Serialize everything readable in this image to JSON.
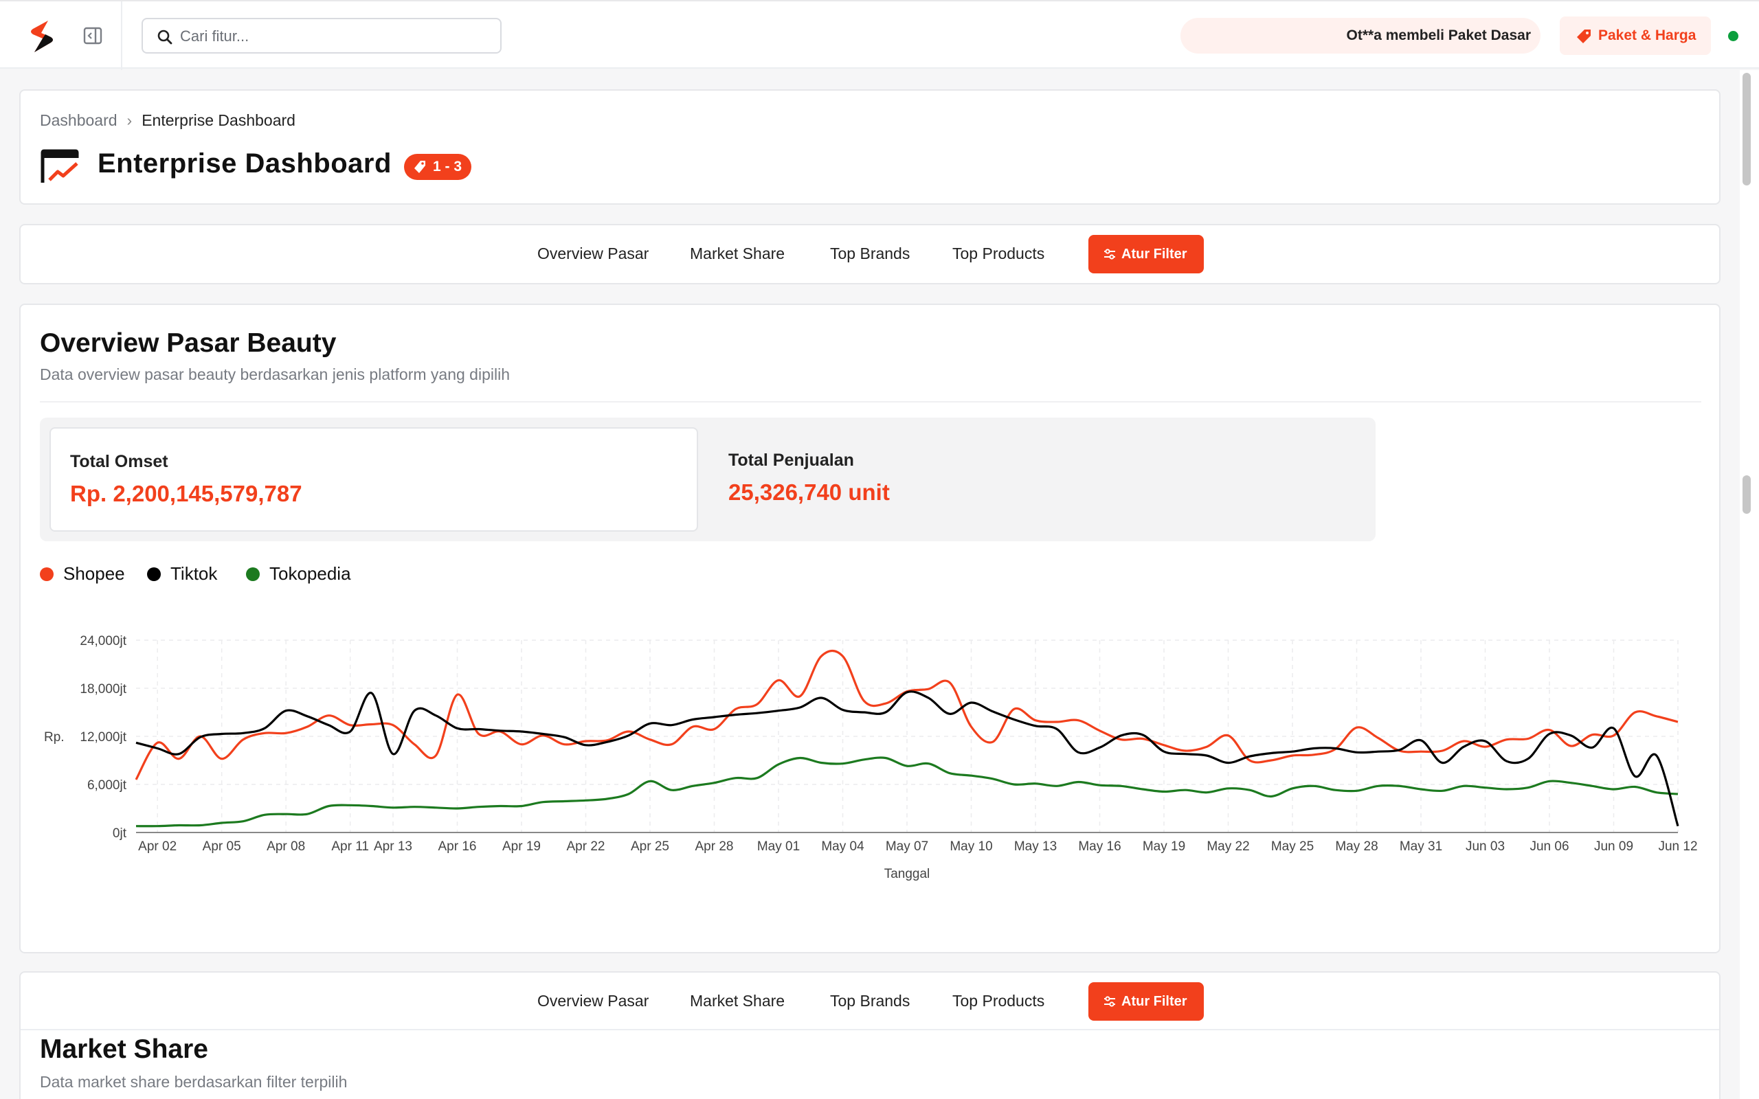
{
  "topbar": {
    "search_placeholder": "Cari fitur...",
    "ticker_text": "Ot**a membeli Paket Dasar",
    "pricing_label": "Paket & Harga"
  },
  "breadcrumb": {
    "root": "Dashboard",
    "current": "Enterprise Dashboard"
  },
  "page": {
    "title": "Enterprise Dashboard",
    "tier_badge": "1 - 3"
  },
  "nav_tabs": [
    "Overview Pasar",
    "Market Share",
    "Top Brands",
    "Top Products"
  ],
  "filter_label": "Atur Filter",
  "overview": {
    "title": "Overview Pasar Beauty",
    "subtitle": "Data overview pasar beauty berdasarkan jenis platform yang dipilih",
    "stats": [
      {
        "label": "Total Omset",
        "value": "Rp. 2,200,145,579,787"
      },
      {
        "label": "Total Penjualan",
        "value": "25,326,740 unit"
      }
    ]
  },
  "market_share": {
    "title": "Market Share",
    "subtitle": "Data market share berdasarkan filter terpilih"
  },
  "colors": {
    "accent": "#f2401c",
    "shopee": "#f2401c",
    "tiktok": "#000000",
    "tokopedia": "#1c7a1f",
    "online": "#0c9f3d"
  },
  "chart_data": {
    "type": "line",
    "xlabel": "Tanggal",
    "ylabel": "Rp.",
    "y_ticks": [
      "0jt",
      "6,000jt",
      "12,000jt",
      "18,000jt",
      "24,000jt"
    ],
    "ylim": [
      0,
      24000
    ],
    "x_ticks": [
      "Apr 02",
      "Apr 05",
      "Apr 08",
      "Apr 11",
      "Apr 13",
      "Apr 16",
      "Apr 19",
      "Apr 22",
      "Apr 25",
      "Apr 28",
      "May 01",
      "May 04",
      "May 07",
      "May 10",
      "May 13",
      "May 16",
      "May 19",
      "May 22",
      "May 25",
      "May 28",
      "May 31",
      "Jun 03",
      "Jun 06",
      "Jun 09",
      "Jun 12"
    ],
    "x_tick_days": [
      1,
      4,
      7,
      10,
      12,
      15,
      18,
      21,
      24,
      27,
      30,
      33,
      36,
      39,
      42,
      45,
      48,
      51,
      54,
      57,
      60,
      63,
      66,
      69,
      72
    ],
    "grid": true,
    "legend_position": "top-left",
    "series": [
      {
        "name": "Shopee",
        "color": "#f2401c",
        "values": [
          6600,
          11200,
          9200,
          12000,
          9200,
          11600,
          12400,
          12400,
          13200,
          14600,
          13400,
          13500,
          13400,
          11000,
          9600,
          17200,
          12300,
          12600,
          11000,
          12100,
          11000,
          11400,
          11500,
          12600,
          11600,
          11000,
          13200,
          12900,
          15400,
          16000,
          19000,
          17000,
          22000,
          22000,
          16400,
          16100,
          17600,
          17900,
          18700,
          13200,
          11300,
          15400,
          14000,
          13800,
          14000,
          12700,
          11600,
          11700,
          10900,
          10200,
          10700,
          12100,
          9000,
          9000,
          9600,
          9700,
          10400,
          13100,
          11800,
          10200,
          10100,
          10200,
          11400,
          10700,
          11600,
          11700,
          12800,
          10800,
          12200,
          12100,
          15000,
          14500,
          13800
        ]
      },
      {
        "name": "Tiktok",
        "color": "#000000",
        "values": [
          11200,
          10500,
          9800,
          11900,
          12300,
          12400,
          13000,
          15200,
          14500,
          13400,
          12600,
          17400,
          9800,
          15200,
          14600,
          13000,
          12900,
          12700,
          12600,
          12300,
          11900,
          10900,
          11300,
          12100,
          13600,
          13400,
          14100,
          14400,
          14700,
          14900,
          15200,
          15600,
          16800,
          15300,
          15000,
          15000,
          17500,
          16800,
          14800,
          16200,
          15100,
          14100,
          13300,
          12900,
          10000,
          10600,
          12100,
          12200,
          10100,
          9800,
          9600,
          8700,
          9500,
          9900,
          10100,
          10500,
          10500,
          10000,
          10100,
          10300,
          11500,
          8700,
          10700,
          11400,
          8900,
          9200,
          12300,
          12100,
          10600,
          13000,
          7000,
          9600,
          800
        ]
      },
      {
        "name": "Tokopedia",
        "color": "#1c7a1f",
        "values": [
          800,
          800,
          900,
          900,
          1200,
          1400,
          2200,
          2300,
          2300,
          3300,
          3400,
          3300,
          3100,
          3200,
          3100,
          3000,
          3200,
          3300,
          3300,
          3800,
          3900,
          4000,
          4200,
          4800,
          6400,
          5300,
          5800,
          6200,
          6800,
          6800,
          8500,
          9300,
          8700,
          8600,
          9100,
          9300,
          8300,
          8600,
          7400,
          7100,
          6700,
          6000,
          6100,
          5800,
          6300,
          5900,
          5800,
          5400,
          5100,
          5300,
          5000,
          5500,
          5300,
          4500,
          5500,
          5800,
          5300,
          5200,
          5800,
          5800,
          5400,
          5200,
          5800,
          5600,
          5400,
          5600,
          6400,
          6200,
          5800,
          5400,
          5700,
          5000,
          4800
        ]
      }
    ]
  }
}
